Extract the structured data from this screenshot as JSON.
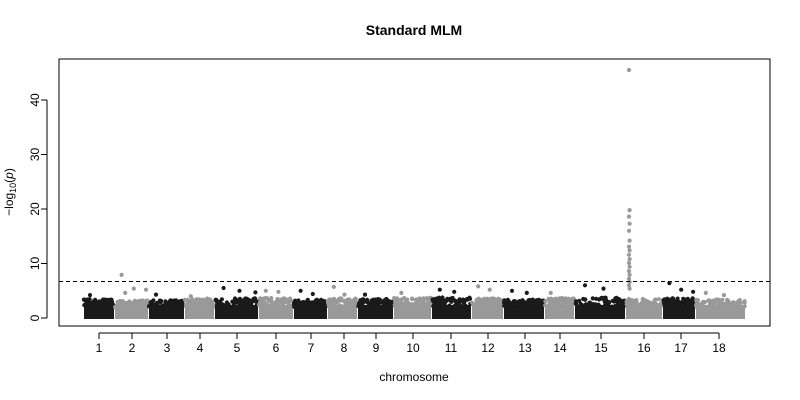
{
  "chart_data": {
    "type": "scatter",
    "subtype": "manhattan",
    "title": "Standard MLM",
    "xlabel": "chromosome",
    "ylabel": "−log10(p)",
    "ylim": [
      0,
      47
    ],
    "y_ticks": [
      0,
      10,
      20,
      30,
      40
    ],
    "x_tick_labels": [
      "1",
      "2",
      "3",
      "4",
      "5",
      "6",
      "7",
      "8",
      "9",
      "10",
      "11",
      "12",
      "13",
      "14",
      "15",
      "16",
      "17",
      "18"
    ],
    "grid": false,
    "legend": "none",
    "significance_threshold": 6.7,
    "threshold_style": "dashed",
    "colors": {
      "odd_chromosome": "#1a1a1a",
      "even_chromosome": "#999999",
      "threshold_line": "#000000"
    },
    "series": [
      {
        "chromosome": "1",
        "baseline_max": 3.5,
        "peaks": [
          4.2
        ]
      },
      {
        "chromosome": "2",
        "baseline_max": 3.2,
        "peaks": [
          7.9,
          5.4,
          5.2,
          4.6
        ]
      },
      {
        "chromosome": "3",
        "baseline_max": 3.3,
        "peaks": [
          4.3
        ]
      },
      {
        "chromosome": "4",
        "baseline_max": 3.6,
        "peaks": [
          4.0
        ]
      },
      {
        "chromosome": "5",
        "baseline_max": 3.6,
        "peaks": [
          5.5,
          5.0,
          4.7
        ]
      },
      {
        "chromosome": "6",
        "baseline_max": 3.7,
        "peaks": [
          5.0,
          4.8
        ]
      },
      {
        "chromosome": "7",
        "baseline_max": 3.4,
        "peaks": [
          5.0,
          4.4
        ]
      },
      {
        "chromosome": "8",
        "baseline_max": 3.6,
        "peaks": [
          5.7,
          4.3
        ]
      },
      {
        "chromosome": "9",
        "baseline_max": 3.5,
        "peaks": [
          4.3
        ]
      },
      {
        "chromosome": "10",
        "baseline_max": 3.7,
        "peaks": [
          4.6
        ]
      },
      {
        "chromosome": "11",
        "baseline_max": 3.8,
        "peaks": [
          5.2,
          4.8
        ]
      },
      {
        "chromosome": "12",
        "baseline_max": 3.6,
        "peaks": [
          5.8,
          5.2
        ]
      },
      {
        "chromosome": "13",
        "baseline_max": 3.4,
        "peaks": [
          5.0,
          4.6
        ]
      },
      {
        "chromosome": "14",
        "baseline_max": 3.7,
        "peaks": [
          4.6
        ]
      },
      {
        "chromosome": "15",
        "baseline_max": 3.8,
        "peaks": [
          6.0,
          5.4
        ]
      },
      {
        "chromosome": "16",
        "baseline_max": 3.5,
        "peaks": [
          45.5,
          19.8,
          18.6,
          17.3,
          16.0,
          14.2,
          13.1,
          12.4,
          11.6,
          10.8,
          10.1,
          9.4,
          8.6,
          7.9,
          7.2,
          6.6,
          6.0,
          5.4
        ]
      },
      {
        "chromosome": "17",
        "baseline_max": 3.6,
        "peaks": [
          6.4,
          5.2,
          4.8
        ]
      },
      {
        "chromosome": "18",
        "baseline_max": 3.4,
        "peaks": [
          4.6,
          4.2
        ]
      }
    ]
  }
}
